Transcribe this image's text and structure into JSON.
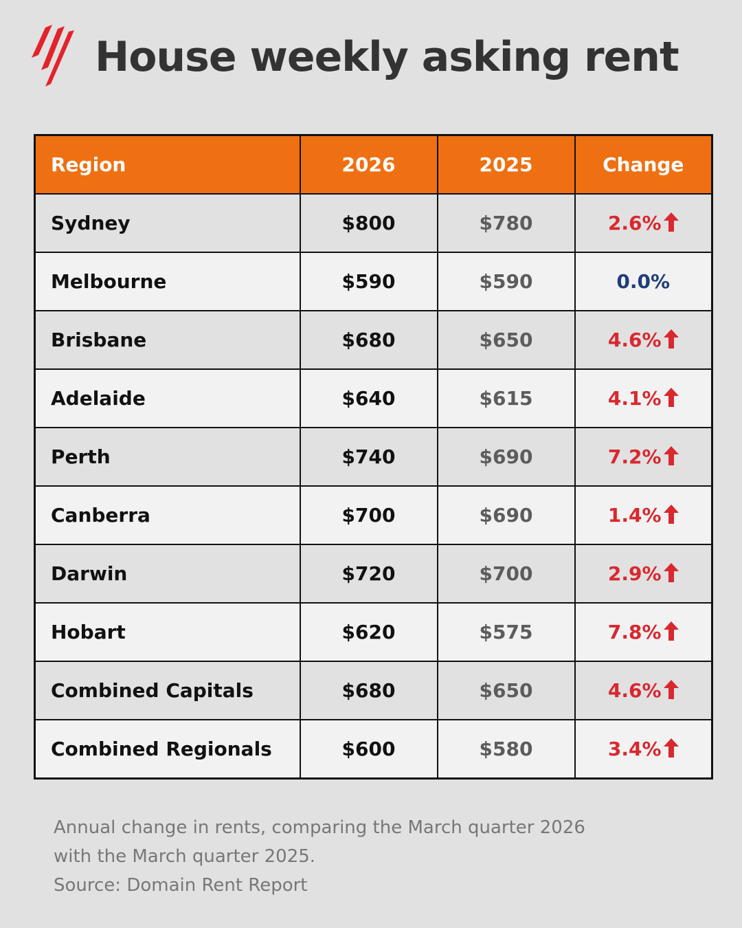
{
  "title": "House weekly asking rent",
  "colors": {
    "background": "#e1e1e1",
    "header": "#ef7012",
    "increase": "#d9282f",
    "no_change": "#1f3d7a",
    "logo": "#e4222b"
  },
  "icons": {
    "logo": "sbs-logo-icon",
    "increase": "arrow-up-icon"
  },
  "chart_data": {
    "type": "table",
    "title": "House weekly asking rent",
    "columns": [
      "Region",
      "2026",
      "2025",
      "Change"
    ],
    "rows": [
      {
        "region": "Sydney",
        "y2026": "$800",
        "y2025": "$780",
        "change": "2.6%",
        "direction": "up"
      },
      {
        "region": "Melbourne",
        "y2026": "$590",
        "y2025": "$590",
        "change": "0.0%",
        "direction": "none"
      },
      {
        "region": "Brisbane",
        "y2026": "$680",
        "y2025": "$650",
        "change": "4.6%",
        "direction": "up"
      },
      {
        "region": "Adelaide",
        "y2026": "$640",
        "y2025": "$615",
        "change": "4.1%",
        "direction": "up"
      },
      {
        "region": "Perth",
        "y2026": "$740",
        "y2025": "$690",
        "change": "7.2%",
        "direction": "up"
      },
      {
        "region": "Canberra",
        "y2026": "$700",
        "y2025": "$690",
        "change": "1.4%",
        "direction": "up"
      },
      {
        "region": "Darwin",
        "y2026": "$720",
        "y2025": "$700",
        "change": "2.9%",
        "direction": "up"
      },
      {
        "region": "Hobart",
        "y2026": "$620",
        "y2025": "$575",
        "change": "7.8%",
        "direction": "up"
      },
      {
        "region": "Combined Capitals",
        "y2026": "$680",
        "y2025": "$650",
        "change": "4.6%",
        "direction": "up"
      },
      {
        "region": "Combined Regionals",
        "y2026": "$600",
        "y2025": "$580",
        "change": "3.4%",
        "direction": "up"
      }
    ]
  },
  "footnote": {
    "line1": "Annual change in rents, comparing the March quarter 2026",
    "line2": "with the March quarter 2025.",
    "source": "Source: Domain Rent Report"
  }
}
